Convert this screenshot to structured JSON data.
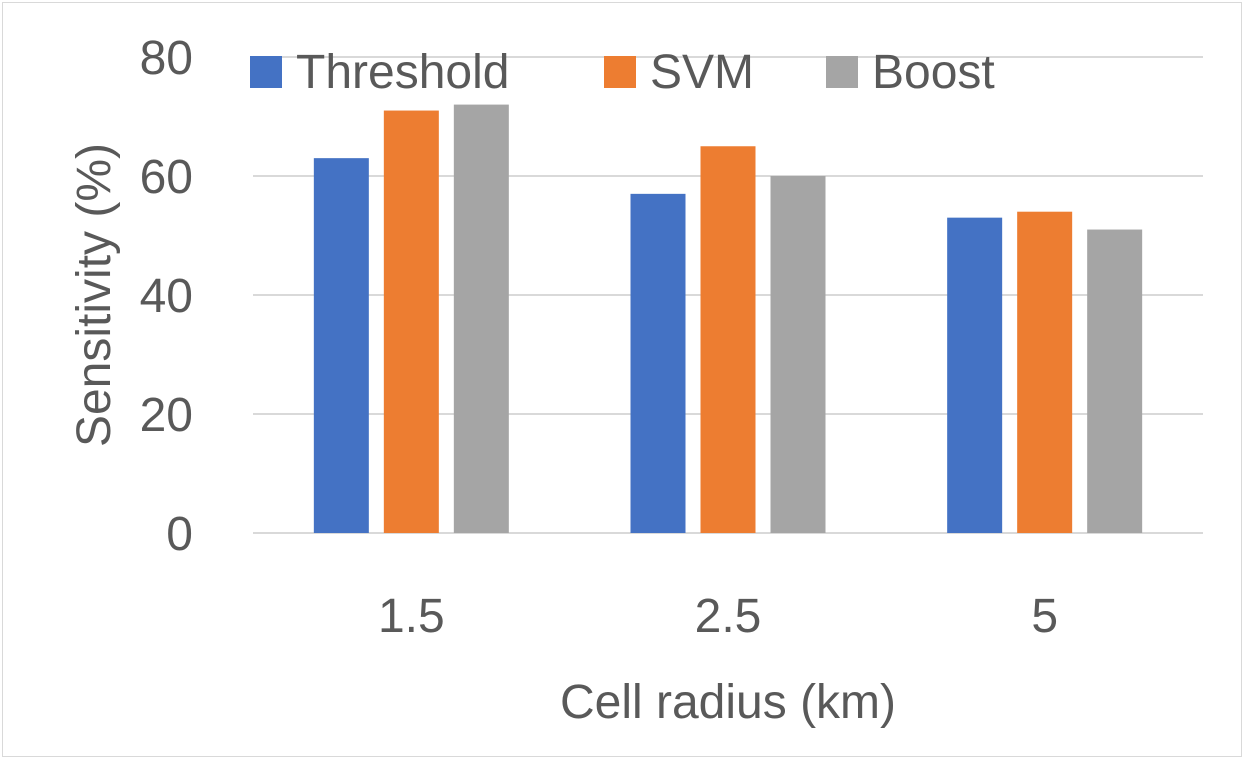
{
  "chart_data": {
    "type": "bar",
    "title": "",
    "categories": [
      "1.5",
      "2.5",
      "5"
    ],
    "series": [
      {
        "name": "Threshold",
        "values": [
          63,
          57,
          53
        ],
        "color": "#4472C4"
      },
      {
        "name": "SVM",
        "values": [
          71,
          65,
          54
        ],
        "color": "#ED7D31"
      },
      {
        "name": "Boost",
        "values": [
          72,
          60,
          51
        ],
        "color": "#A5A5A5"
      }
    ],
    "xlabel": "Cell radius (km)",
    "ylabel": "Sensitivity (%)",
    "ylim": [
      0,
      80
    ],
    "yticks": [
      "0",
      "20",
      "40",
      "60",
      "80"
    ],
    "grid": true,
    "legend": "top"
  }
}
